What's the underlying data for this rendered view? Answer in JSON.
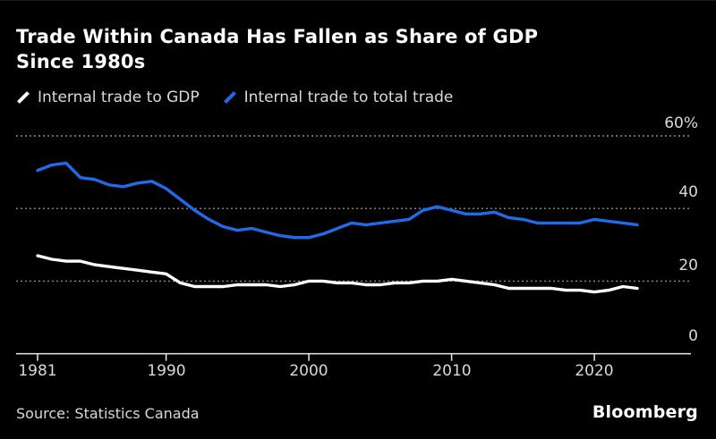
{
  "header": {
    "title_lines": [
      "Trade Within Canada Has Fallen as Share of GDP",
      "Since 1980s"
    ]
  },
  "legend": {
    "items": [
      {
        "label": "Internal trade to GDP",
        "color": "#ffffff"
      },
      {
        "label": "Internal trade to total trade",
        "color": "#1f6be8"
      }
    ]
  },
  "chart_data": {
    "type": "line",
    "title": "Trade Within Canada Has Fallen as Share of GDP Since 1980s",
    "y_unit": "%",
    "xlim": [
      1981,
      2023
    ],
    "ylim": [
      0,
      60
    ],
    "grid": "horizontal-dotted",
    "legend_position": "top-left",
    "x": [
      1981,
      1982,
      1983,
      1984,
      1985,
      1986,
      1987,
      1988,
      1989,
      1990,
      1991,
      1992,
      1993,
      1994,
      1995,
      1996,
      1997,
      1998,
      1999,
      2000,
      2001,
      2002,
      2003,
      2004,
      2005,
      2006,
      2007,
      2008,
      2009,
      2010,
      2011,
      2012,
      2013,
      2014,
      2015,
      2016,
      2017,
      2018,
      2019,
      2020,
      2021,
      2022,
      2023
    ],
    "series": [
      {
        "name": "Internal trade to GDP",
        "color": "#ffffff",
        "values": [
          27,
          26,
          25.5,
          25.5,
          24.5,
          24,
          23.5,
          23,
          22.5,
          22,
          19.5,
          18.5,
          18.5,
          18.5,
          19,
          19,
          19,
          18.5,
          19,
          20,
          20,
          19.5,
          19.5,
          19,
          19,
          19.5,
          19.5,
          20,
          20,
          20.5,
          20,
          19.5,
          19,
          18,
          18,
          18,
          18,
          17.5,
          17.5,
          17,
          17.5,
          18.5,
          18
        ]
      },
      {
        "name": "Internal trade to total trade",
        "color": "#1f6be8",
        "values": [
          50.5,
          52,
          52.5,
          48.5,
          48,
          46.5,
          46,
          47,
          47.5,
          45.5,
          42.5,
          39.5,
          37,
          35,
          34,
          34.5,
          33.5,
          32.5,
          32,
          32,
          33,
          34.5,
          36,
          35.5,
          36,
          36.5,
          37,
          39.5,
          40.5,
          39.5,
          38.5,
          38.5,
          39,
          37.5,
          37,
          36,
          36,
          36,
          36,
          37,
          36.5,
          36,
          35.5
        ]
      }
    ],
    "y_ticks": [
      {
        "label": "60%",
        "value": 60
      },
      {
        "label": "40",
        "value": 40
      },
      {
        "label": "20",
        "value": 20
      },
      {
        "label": "0",
        "value": 0
      }
    ],
    "x_ticks": [
      {
        "label": "1981",
        "year": 1981
      },
      {
        "label": "1990",
        "year": 1990
      },
      {
        "label": "2000",
        "year": 2000
      },
      {
        "label": "2010",
        "year": 2010
      },
      {
        "label": "2020",
        "year": 2020
      }
    ]
  },
  "footer": {
    "source": "Source: Statistics Canada",
    "brand": "Bloomberg"
  },
  "colors": {
    "background": "#000000",
    "grid": "#8a8a8a",
    "axis": "#e8e8e8",
    "text_primary": "#ffffff",
    "text_secondary": "#d9d9d9",
    "blue": "#1f6be8"
  }
}
